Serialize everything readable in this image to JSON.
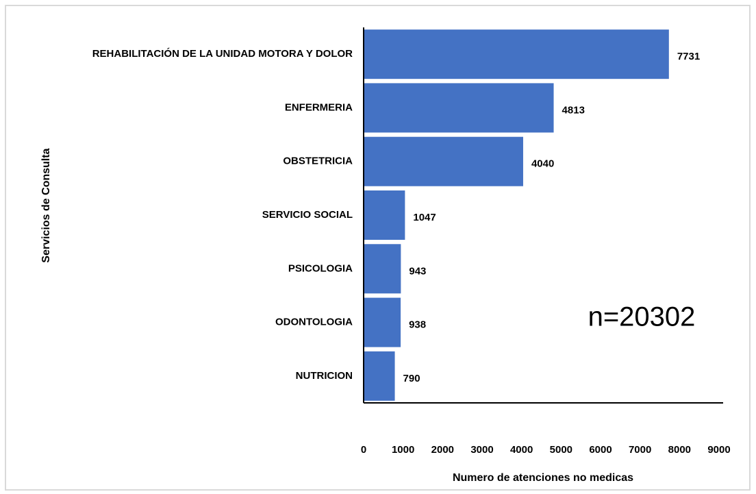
{
  "chart_data": {
    "type": "bar",
    "orientation": "horizontal",
    "categories": [
      "REHABILITACIÓN DE LA UNIDAD MOTORA Y DOLOR",
      "ENFERMERIA",
      "OBSTETRICIA",
      "SERVICIO SOCIAL",
      "PSICOLOGIA",
      "ODONTOLOGIA",
      "NUTRICION"
    ],
    "values": [
      7731,
      4813,
      4040,
      1047,
      943,
      938,
      790
    ],
    "color": "#4472c4",
    "xlim": [
      0,
      9000
    ],
    "xticks": [
      0,
      1000,
      2000,
      3000,
      4000,
      5000,
      6000,
      7000,
      8000,
      9000
    ],
    "xlabel": "Numero de atenciones no medicas",
    "ylabel": "Servicios de Consulta",
    "annotation": "n=20302",
    "grid": false
  }
}
